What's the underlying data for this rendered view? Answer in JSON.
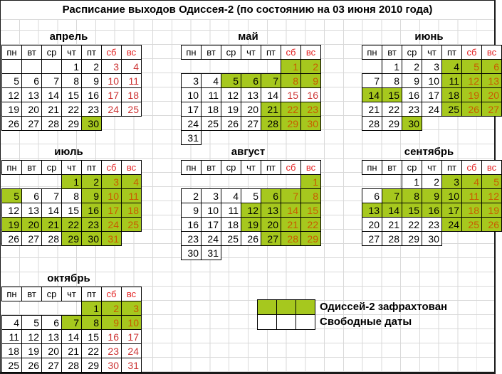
{
  "title": "Расписание выходов Одиссея-2 (по состоянию на 03 июня 2010 года)",
  "weekday_headers": [
    "пн",
    "вт",
    "ср",
    "чт",
    "пт",
    "сб",
    "вс"
  ],
  "colors": {
    "chartered_green": "#a6c81e",
    "weekend_header_red": "#e32222",
    "weekend_free_red": "#cc3333",
    "weekend_chartered_red": "#c85c00",
    "gridline_gray": "#d9d9d9"
  },
  "legend": {
    "chartered_label": "Одиссей-2 зафрахтован",
    "free_label": "Свободные даты"
  },
  "months": [
    {
      "name": "апрель",
      "weeks": [
        [
          {
            "b": 1
          },
          {
            "b": 1
          },
          {
            "b": 1
          },
          {
            "d": "1"
          },
          {
            "d": "2"
          },
          {
            "d": "3"
          },
          {
            "d": "4"
          }
        ],
        [
          {
            "d": "5"
          },
          {
            "d": "6"
          },
          {
            "d": "7"
          },
          {
            "d": "8"
          },
          {
            "d": "9"
          },
          {
            "d": "10"
          },
          {
            "d": "11"
          }
        ],
        [
          {
            "d": "12"
          },
          {
            "d": "13"
          },
          {
            "d": "14"
          },
          {
            "d": "15"
          },
          {
            "d": "16"
          },
          {
            "d": "17"
          },
          {
            "d": "18"
          }
        ],
        [
          {
            "d": "19"
          },
          {
            "d": "20"
          },
          {
            "d": "21"
          },
          {
            "d": "22"
          },
          {
            "d": "23"
          },
          {
            "d": "24"
          },
          {
            "d": "25"
          }
        ],
        [
          {
            "d": "26"
          },
          {
            "d": "27"
          },
          {
            "d": "28"
          },
          {
            "d": "29"
          },
          {
            "d": "30",
            "c": 1
          },
          null,
          null
        ]
      ]
    },
    {
      "name": "май",
      "weeks": [
        [
          null,
          null,
          null,
          null,
          null,
          {
            "d": "1",
            "c": 1
          },
          {
            "d": "2",
            "c": 1
          }
        ],
        [
          {
            "d": "3"
          },
          {
            "d": "4"
          },
          {
            "d": "5",
            "c": 1
          },
          {
            "d": "6",
            "c": 1
          },
          {
            "d": "7",
            "c": 1
          },
          {
            "d": "8",
            "c": 1
          },
          {
            "d": "9",
            "c": 1
          }
        ],
        [
          {
            "d": "10"
          },
          {
            "d": "11"
          },
          {
            "d": "12"
          },
          {
            "d": "13"
          },
          {
            "d": "14"
          },
          {
            "d": "15"
          },
          {
            "d": "16"
          }
        ],
        [
          {
            "d": "17"
          },
          {
            "d": "18"
          },
          {
            "d": "19"
          },
          {
            "d": "20"
          },
          {
            "d": "21",
            "c": 1
          },
          {
            "d": "22",
            "c": 1
          },
          {
            "d": "23",
            "c": 1
          }
        ],
        [
          {
            "d": "24"
          },
          {
            "d": "25"
          },
          {
            "d": "26"
          },
          {
            "d": "27"
          },
          {
            "d": "28",
            "c": 1
          },
          {
            "d": "29",
            "c": 1
          },
          {
            "d": "30",
            "c": 1
          }
        ],
        [
          {
            "d": "31"
          },
          null,
          null,
          null,
          null,
          null,
          null
        ]
      ]
    },
    {
      "name": "июнь",
      "weeks": [
        [
          null,
          {
            "d": "1"
          },
          {
            "d": "2"
          },
          {
            "d": "3"
          },
          {
            "d": "4",
            "c": 1
          },
          {
            "d": "5",
            "c": 1
          },
          {
            "d": "6",
            "c": 1
          }
        ],
        [
          {
            "d": "7"
          },
          {
            "d": "8"
          },
          {
            "d": "9"
          },
          {
            "d": "10"
          },
          {
            "d": "11",
            "c": 1
          },
          {
            "d": "12",
            "c": 1
          },
          {
            "d": "13",
            "c": 1
          }
        ],
        [
          {
            "d": "14",
            "c": 1
          },
          {
            "d": "15",
            "c": 1
          },
          {
            "d": "16"
          },
          {
            "d": "17"
          },
          {
            "d": "18",
            "c": 1
          },
          {
            "d": "19",
            "c": 1
          },
          {
            "d": "20",
            "c": 1
          }
        ],
        [
          {
            "d": "21"
          },
          {
            "d": "22"
          },
          {
            "d": "23"
          },
          {
            "d": "24"
          },
          {
            "d": "25",
            "c": 1
          },
          {
            "d": "26",
            "c": 1
          },
          {
            "d": "27",
            "c": 1
          }
        ],
        [
          {
            "d": "28"
          },
          {
            "d": "29"
          },
          {
            "d": "30",
            "c": 1
          },
          null,
          null,
          null,
          null
        ]
      ]
    },
    {
      "name": "июль",
      "weeks": [
        [
          null,
          null,
          null,
          {
            "d": "1",
            "c": 1
          },
          {
            "d": "2",
            "c": 1
          },
          {
            "d": "3",
            "c": 1
          },
          {
            "d": "4",
            "c": 1
          }
        ],
        [
          {
            "d": "5",
            "c": 1
          },
          {
            "d": "6"
          },
          {
            "d": "7"
          },
          {
            "d": "8"
          },
          {
            "d": "9",
            "c": 1
          },
          {
            "d": "10",
            "c": 1
          },
          {
            "d": "11",
            "c": 1
          }
        ],
        [
          {
            "d": "12"
          },
          {
            "d": "13"
          },
          {
            "d": "14"
          },
          {
            "d": "15"
          },
          {
            "d": "16",
            "c": 1
          },
          {
            "d": "17",
            "c": 1
          },
          {
            "d": "18",
            "c": 1
          }
        ],
        [
          {
            "d": "19",
            "c": 1
          },
          {
            "d": "20",
            "c": 1
          },
          {
            "d": "21",
            "c": 1
          },
          {
            "d": "22",
            "c": 1
          },
          {
            "d": "23",
            "c": 1
          },
          {
            "d": "24",
            "c": 1
          },
          {
            "d": "25",
            "c": 1
          }
        ],
        [
          {
            "d": "26"
          },
          {
            "d": "27"
          },
          {
            "d": "28"
          },
          {
            "d": "29",
            "c": 1
          },
          {
            "d": "30",
            "c": 1
          },
          {
            "d": "31",
            "c": 1
          },
          null
        ]
      ]
    },
    {
      "name": "август",
      "weeks": [
        [
          null,
          null,
          null,
          null,
          null,
          null,
          {
            "d": "1",
            "c": 1
          }
        ],
        [
          {
            "d": "2"
          },
          {
            "d": "3"
          },
          {
            "d": "4"
          },
          {
            "d": "5"
          },
          {
            "d": "6",
            "c": 1
          },
          {
            "d": "7",
            "c": 1
          },
          {
            "d": "8",
            "c": 1
          }
        ],
        [
          {
            "d": "9"
          },
          {
            "d": "10"
          },
          {
            "d": "11"
          },
          {
            "d": "12",
            "c": 1
          },
          {
            "d": "13",
            "c": 1
          },
          {
            "d": "14",
            "c": 1
          },
          {
            "d": "15",
            "c": 1
          }
        ],
        [
          {
            "d": "16"
          },
          {
            "d": "17"
          },
          {
            "d": "18"
          },
          {
            "d": "19",
            "c": 1
          },
          {
            "d": "20",
            "c": 1
          },
          {
            "d": "21",
            "c": 1
          },
          {
            "d": "22",
            "c": 1
          }
        ],
        [
          {
            "d": "23"
          },
          {
            "d": "24"
          },
          {
            "d": "25"
          },
          {
            "d": "26"
          },
          {
            "d": "27",
            "c": 1
          },
          {
            "d": "28",
            "c": 1
          },
          {
            "d": "29",
            "c": 1
          }
        ],
        [
          {
            "d": "30"
          },
          {
            "d": "31"
          },
          null,
          null,
          null,
          null,
          null
        ]
      ]
    },
    {
      "name": "сентябрь",
      "weeks": [
        [
          null,
          null,
          {
            "d": "1"
          },
          {
            "d": "2"
          },
          {
            "d": "3",
            "c": 1
          },
          {
            "d": "4",
            "c": 1
          },
          {
            "d": "5",
            "c": 1
          }
        ],
        [
          {
            "d": "6"
          },
          {
            "d": "7",
            "c": 1
          },
          {
            "d": "8",
            "c": 1
          },
          {
            "d": "9",
            "c": 1
          },
          {
            "d": "10",
            "c": 1
          },
          {
            "d": "11",
            "c": 1
          },
          {
            "d": "12",
            "c": 1
          }
        ],
        [
          {
            "d": "13",
            "c": 1
          },
          {
            "d": "14",
            "c": 1
          },
          {
            "d": "15",
            "c": 1
          },
          {
            "d": "16",
            "c": 1
          },
          {
            "d": "17",
            "c": 1
          },
          {
            "d": "18",
            "c": 1
          },
          {
            "d": "19",
            "c": 1
          }
        ],
        [
          {
            "d": "20"
          },
          {
            "d": "21"
          },
          {
            "d": "22"
          },
          {
            "d": "23"
          },
          {
            "d": "24",
            "c": 1
          },
          {
            "d": "25",
            "c": 1
          },
          {
            "d": "26",
            "c": 1
          }
        ],
        [
          {
            "d": "27"
          },
          {
            "d": "28"
          },
          {
            "d": "29"
          },
          {
            "d": "30"
          },
          null,
          null,
          null
        ]
      ]
    },
    {
      "name": "октябрь",
      "weeks": [
        [
          null,
          null,
          null,
          null,
          {
            "d": "1",
            "c": 1
          },
          {
            "d": "2",
            "c": 1
          },
          {
            "d": "3",
            "c": 1
          }
        ],
        [
          {
            "d": "4"
          },
          {
            "d": "5"
          },
          {
            "d": "6"
          },
          {
            "d": "7",
            "c": 1
          },
          {
            "d": "8",
            "c": 1
          },
          {
            "d": "9",
            "c": 1
          },
          {
            "d": "10",
            "c": 1
          }
        ],
        [
          {
            "d": "11"
          },
          {
            "d": "12"
          },
          {
            "d": "13"
          },
          {
            "d": "14"
          },
          {
            "d": "15"
          },
          {
            "d": "16"
          },
          {
            "d": "17"
          }
        ],
        [
          {
            "d": "18"
          },
          {
            "d": "19"
          },
          {
            "d": "20"
          },
          {
            "d": "21"
          },
          {
            "d": "22"
          },
          {
            "d": "23"
          },
          {
            "d": "24"
          }
        ],
        [
          {
            "d": "25"
          },
          {
            "d": "26"
          },
          {
            "d": "27"
          },
          {
            "d": "28"
          },
          {
            "d": "29"
          },
          {
            "d": "30"
          },
          {
            "d": "31"
          }
        ]
      ]
    }
  ]
}
